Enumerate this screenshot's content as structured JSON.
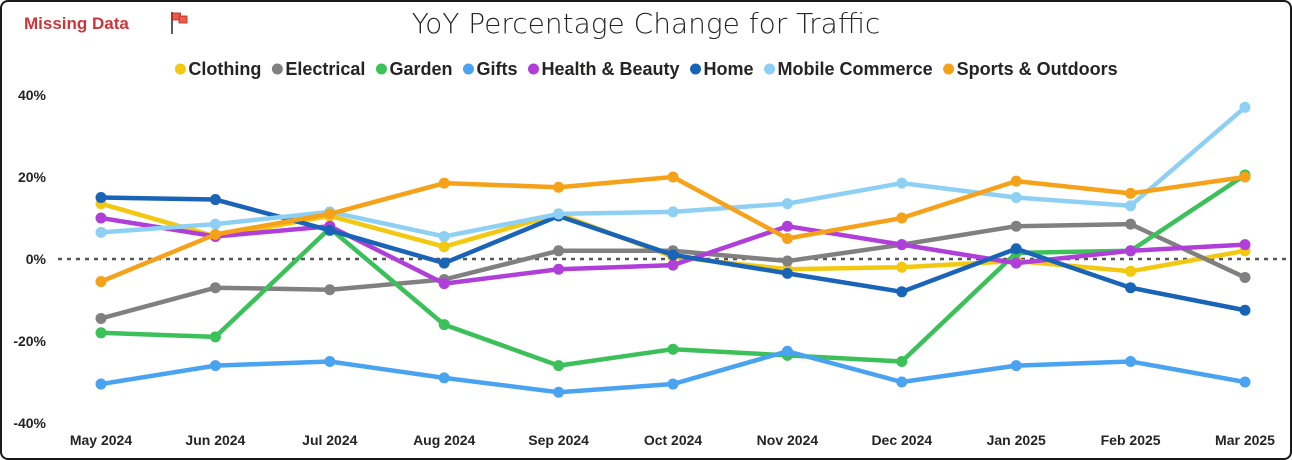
{
  "header": {
    "missing_label": "Missing Data",
    "flag_icon": "flag-icon"
  },
  "chart_data": {
    "type": "line",
    "title": "YoY Percentage Change for Traffic",
    "xlabel": "",
    "ylabel": "",
    "ylim": [
      -40,
      40
    ],
    "yticks": [
      "40%",
      "20%",
      "0%",
      "-20%",
      "-40%"
    ],
    "ytick_values": [
      40,
      20,
      0,
      -20,
      -40
    ],
    "legend_position": "top",
    "zero_line": "dotted",
    "x": [
      "May 2024",
      "Jun 2024",
      "Jul 2024",
      "Aug 2024",
      "Sep 2024",
      "Oct 2024",
      "Nov 2024",
      "Dec 2024",
      "Jan 2025",
      "Feb 2025",
      "Mar 2025"
    ],
    "series": [
      {
        "name": "Clothing",
        "color": "#f2c811",
        "values": [
          13.5,
          5.5,
          10.5,
          3.0,
          11.0,
          0.5,
          -2.5,
          -2.0,
          -0.5,
          -3.0,
          2.0
        ]
      },
      {
        "name": "Electrical",
        "color": "#808080",
        "values": [
          -14.5,
          -7.0,
          -7.5,
          -5.0,
          2.0,
          2.0,
          -0.5,
          3.5,
          8.0,
          8.5,
          -4.5
        ]
      },
      {
        "name": "Garden",
        "color": "#3cc05a",
        "values": [
          -18.0,
          -19.0,
          7.5,
          -16.0,
          -26.0,
          -22.0,
          -23.5,
          -25.0,
          1.5,
          2.0,
          20.5
        ]
      },
      {
        "name": "Gifts",
        "color": "#4aa3f0",
        "values": [
          -30.5,
          -26.0,
          -25.0,
          -29.0,
          -32.5,
          -30.5,
          -22.5,
          -30.0,
          -26.0,
          -25.0,
          -30.0
        ]
      },
      {
        "name": "Health & Beauty",
        "color": "#b03fd9",
        "values": [
          10.0,
          5.5,
          8.0,
          -6.0,
          -2.5,
          -1.5,
          8.0,
          3.5,
          -1.0,
          2.0,
          3.5
        ]
      },
      {
        "name": "Home",
        "color": "#1a64b8",
        "values": [
          15.0,
          14.5,
          7.0,
          -1.0,
          10.5,
          1.0,
          -3.5,
          -8.0,
          2.5,
          -7.0,
          -12.5
        ]
      },
      {
        "name": "Mobile Commerce",
        "color": "#8ed0f3",
        "values": [
          6.5,
          8.5,
          11.5,
          5.5,
          11.0,
          11.5,
          13.5,
          18.5,
          15.0,
          13.0,
          37.0
        ]
      },
      {
        "name": "Sports & Outdoors",
        "color": "#f5a21a",
        "values": [
          -5.5,
          6.0,
          11.0,
          18.5,
          17.5,
          20.0,
          5.0,
          10.0,
          19.0,
          16.0,
          20.0
        ]
      }
    ]
  }
}
